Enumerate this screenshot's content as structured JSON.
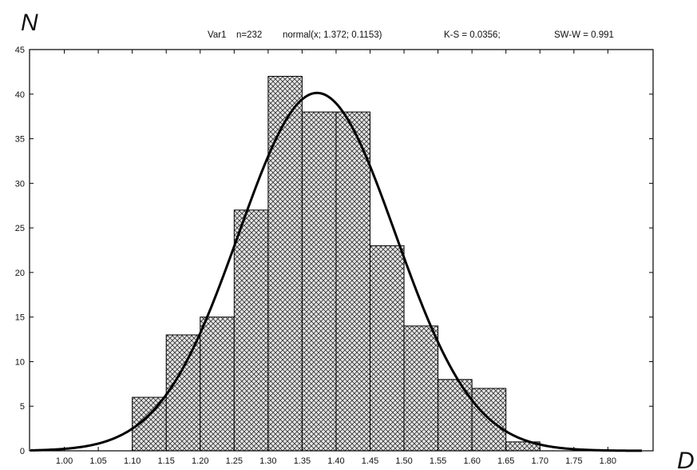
{
  "chart_data": {
    "type": "bar",
    "subtype": "histogram",
    "x": [
      1.1,
      1.15,
      1.2,
      1.25,
      1.3,
      1.35,
      1.4,
      1.45,
      1.5,
      1.55,
      1.6,
      1.65
    ],
    "bin_width": 0.05,
    "values": [
      6,
      13,
      15,
      27,
      42,
      38,
      38,
      23,
      14,
      8,
      7,
      1
    ],
    "fitted_curve": {
      "type": "normal",
      "mean": 1.372,
      "sd": 0.1153,
      "n": 232
    },
    "header": {
      "var": "Var1",
      "n_text": "n=232",
      "fit_text": "normal(x; 1.372; 0.1153)",
      "ks_text": "K-S = 0.0356;",
      "sw_text": "SW-W = 0.991"
    },
    "xlabel": "D",
    "ylabel": "N",
    "xlim": [
      0.95,
      1.85
    ],
    "ylim": [
      0,
      45
    ],
    "x_ticks": [
      "1.00",
      "1.05",
      "1.10",
      "1.15",
      "1.20",
      "1.25",
      "1.30",
      "1.35",
      "1.40",
      "1.45",
      "1.50",
      "1.55",
      "1.60",
      "1.65",
      "1.70",
      "1.75",
      "1.80"
    ],
    "y_ticks": [
      "0",
      "5",
      "10",
      "15",
      "20",
      "25",
      "30",
      "35",
      "40",
      "45"
    ],
    "grid": false,
    "colors": {
      "bar_fill": "#e6e6e6",
      "hatch": "#222222",
      "curve": "#000000",
      "frame": "#000000"
    }
  }
}
